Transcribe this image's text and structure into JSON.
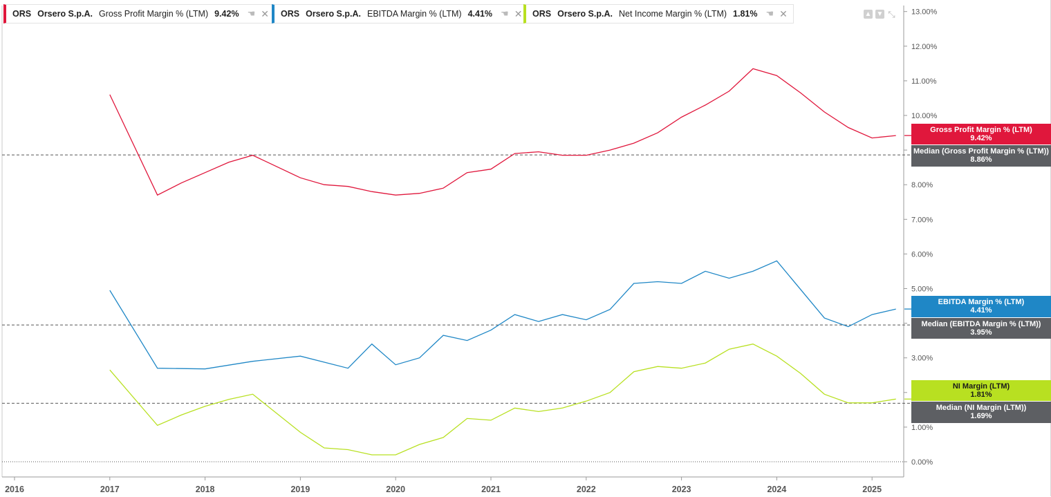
{
  "legend": [
    {
      "ticker": "ORS",
      "company": "Orsero S.p.A.",
      "metric": "Gross Profit Margin % (LTM)",
      "value": "9.42%",
      "color": "#e0173c",
      "icon": "hand-icon",
      "close": "✕"
    },
    {
      "ticker": "ORS",
      "company": "Orsero S.p.A.",
      "metric": "EBITDA Margin % (LTM)",
      "value": "4.41%",
      "color": "#1f87c6",
      "icon": "hand-icon",
      "close": "✕"
    },
    {
      "ticker": "ORS",
      "company": "Orsero S.p.A.",
      "metric": "Net Income Margin % (LTM)",
      "value": "1.81%",
      "color": "#b8e021",
      "icon": "hand-icon",
      "close": "✕"
    }
  ],
  "toolbar": {
    "icons": [
      "scroll-up-icon",
      "scroll-down-icon",
      "expand-icon"
    ]
  },
  "tags": [
    {
      "label": "Gross Profit Margin % (LTM)",
      "value": "9.42%",
      "color": "#e0173c"
    },
    {
      "label": "Median (Gross Profit Margin % (LTM))",
      "value": "8.86%",
      "color": "#5d5f63"
    },
    {
      "label": "EBITDA Margin % (LTM)",
      "value": "4.41%",
      "color": "#1f87c6"
    },
    {
      "label": "Median (EBITDA Margin % (LTM))",
      "value": "3.95%",
      "color": "#5d5f63"
    },
    {
      "label": "NI Margin (LTM)",
      "value": "1.81%",
      "color": "#b8e021"
    },
    {
      "label": "Median (NI Margin (LTM))",
      "value": "1.69%",
      "color": "#5d5f63"
    }
  ],
  "chart_data": {
    "type": "line",
    "x_ticks": [
      "2016",
      "2017",
      "2018",
      "2019",
      "2020",
      "2021",
      "2022",
      "2023",
      "2024",
      "2025"
    ],
    "y_ticks": [
      "0.00%",
      "1.00%",
      "2.00%",
      "3.00%",
      "4.00%",
      "5.00%",
      "6.00%",
      "7.00%",
      "8.00%",
      "9.00%",
      "10.00%",
      "11.00%",
      "12.00%",
      "13.00%"
    ],
    "xlim": [
      2015.9,
      2025.37
    ],
    "ylim": [
      -0.41,
      13.2
    ],
    "grid": false,
    "series": [
      {
        "name": "Gross Profit Margin % (LTM)",
        "color": "#e0173c",
        "x": [
          2017.0,
          2017.5,
          2017.75,
          2018.0,
          2018.25,
          2018.5,
          2019.0,
          2019.25,
          2019.5,
          2019.75,
          2020.0,
          2020.25,
          2020.5,
          2020.75,
          2021.0,
          2021.25,
          2021.5,
          2021.75,
          2022.0,
          2022.25,
          2022.5,
          2022.75,
          2023.0,
          2023.25,
          2023.5,
          2023.75,
          2024.0,
          2024.25,
          2024.5,
          2024.75,
          2025.0,
          2025.25
        ],
        "y": [
          10.6,
          7.7,
          8.05,
          8.35,
          8.65,
          8.85,
          8.2,
          8.0,
          7.95,
          7.8,
          7.7,
          7.75,
          7.9,
          8.35,
          8.45,
          8.9,
          8.95,
          8.85,
          8.85,
          9.0,
          9.2,
          9.5,
          9.95,
          10.3,
          10.7,
          11.35,
          11.15,
          10.65,
          10.1,
          9.65,
          9.35,
          9.42
        ]
      },
      {
        "name": "EBITDA Margin % (LTM)",
        "color": "#1f87c6",
        "x": [
          2017.0,
          2017.5,
          2018.0,
          2018.5,
          2019.0,
          2019.5,
          2019.75,
          2020.0,
          2020.25,
          2020.5,
          2020.75,
          2021.0,
          2021.25,
          2021.5,
          2021.75,
          2022.0,
          2022.25,
          2022.5,
          2022.75,
          2023.0,
          2023.25,
          2023.5,
          2023.75,
          2024.0,
          2024.5,
          2024.75,
          2025.0,
          2025.25
        ],
        "y": [
          4.95,
          2.7,
          2.68,
          2.9,
          3.05,
          2.7,
          3.4,
          2.8,
          3.0,
          3.65,
          3.5,
          3.8,
          4.25,
          4.05,
          4.25,
          4.1,
          4.4,
          5.15,
          5.2,
          5.15,
          5.5,
          5.3,
          5.5,
          5.8,
          4.15,
          3.9,
          4.25,
          4.41
        ]
      },
      {
        "name": "NI Margin (LTM)",
        "color": "#b8e021",
        "x": [
          2017.0,
          2017.5,
          2017.75,
          2018.0,
          2018.25,
          2018.5,
          2019.0,
          2019.25,
          2019.5,
          2019.75,
          2020.0,
          2020.25,
          2020.5,
          2020.75,
          2021.0,
          2021.25,
          2021.5,
          2021.75,
          2022.0,
          2022.25,
          2022.5,
          2022.75,
          2023.0,
          2023.25,
          2023.5,
          2023.75,
          2024.0,
          2024.25,
          2024.5,
          2024.75,
          2025.0,
          2025.25
        ],
        "y": [
          2.65,
          1.05,
          1.35,
          1.6,
          1.8,
          1.95,
          0.85,
          0.4,
          0.35,
          0.2,
          0.2,
          0.5,
          0.7,
          1.25,
          1.2,
          1.55,
          1.45,
          1.55,
          1.75,
          2.0,
          2.6,
          2.75,
          2.7,
          2.85,
          3.25,
          3.4,
          3.05,
          2.55,
          1.95,
          1.7,
          1.7,
          1.81
        ]
      }
    ],
    "medians": [
      {
        "name": "Median (Gross Profit Margin % (LTM))",
        "value": 8.86
      },
      {
        "name": "Median (EBITDA Margin % (LTM))",
        "value": 3.95
      },
      {
        "name": "Median (NI Margin (LTM))",
        "value": 1.69
      }
    ],
    "zero_line": 0
  }
}
